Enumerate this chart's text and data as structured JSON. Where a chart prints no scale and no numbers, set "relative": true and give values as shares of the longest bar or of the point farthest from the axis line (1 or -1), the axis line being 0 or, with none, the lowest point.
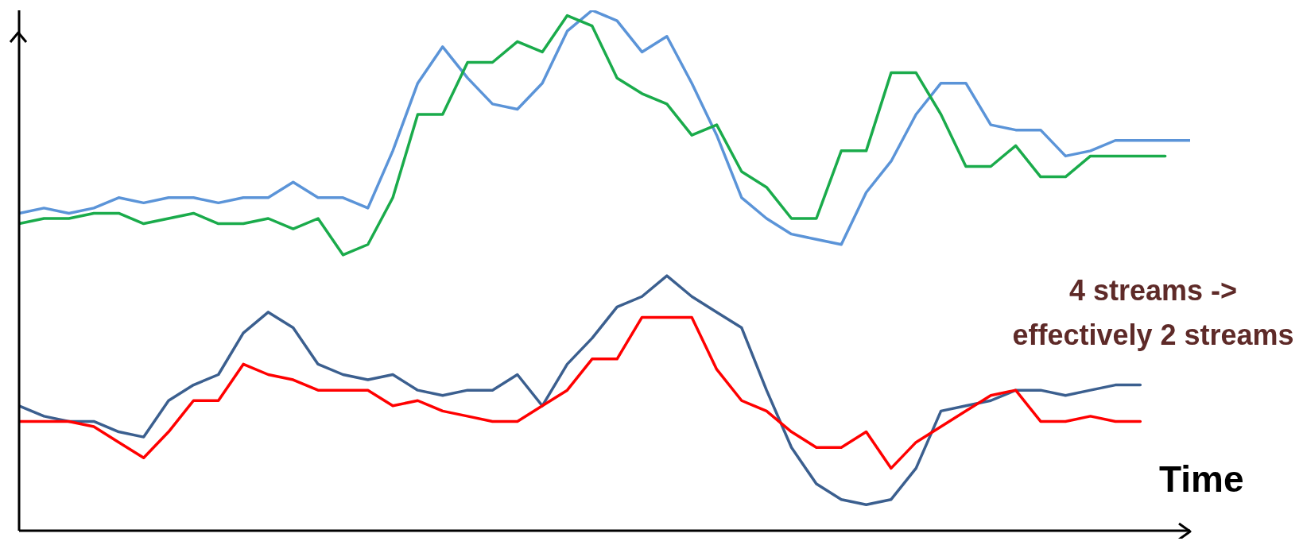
{
  "chart_data": {
    "type": "line",
    "relative": true,
    "xlabel": "Time",
    "annotations": [
      "4 streams -> effectively 2 streams"
    ],
    "grid": false,
    "marker": "none",
    "line_style": "solid",
    "categories": [
      null,
      null,
      null,
      null,
      null,
      null,
      null,
      null,
      null,
      null,
      null,
      null,
      null,
      null,
      null,
      null,
      null,
      null,
      null,
      null,
      null,
      null,
      null,
      null,
      null,
      null,
      null,
      null,
      null,
      null,
      null,
      null,
      null,
      null,
      null,
      null,
      null,
      null,
      null,
      null,
      null,
      null,
      null,
      null,
      null,
      null,
      null,
      null
    ],
    "series": [
      {
        "color": "#5b94d8",
        "values": [
          0.61,
          0.62,
          0.61,
          0.62,
          0.64,
          0.63,
          0.64,
          0.64,
          0.63,
          0.64,
          0.64,
          0.67,
          0.64,
          0.64,
          0.62,
          0.73,
          0.86,
          0.93,
          0.87,
          0.82,
          0.81,
          0.86,
          0.96,
          1,
          0.98,
          0.92,
          0.95,
          0.86,
          0.76,
          0.64,
          0.6,
          0.57,
          0.56,
          0.55,
          0.65,
          0.71,
          0.8,
          0.86,
          0.86,
          0.78,
          0.77,
          0.77,
          0.72,
          0.73,
          0.75,
          0.75,
          0.75,
          0.75
        ]
      },
      {
        "color": "#1aab4b",
        "values": [
          0.59,
          0.6,
          0.6,
          0.61,
          0.61,
          0.59,
          0.6,
          0.61,
          0.59,
          0.59,
          0.6,
          0.58,
          0.6,
          0.53,
          0.55,
          0.64,
          0.8,
          0.8,
          0.9,
          0.9,
          0.94,
          0.92,
          0.99,
          0.97,
          0.87,
          0.84,
          0.82,
          0.76,
          0.78,
          0.69,
          0.66,
          0.6,
          0.6,
          0.73,
          0.73,
          0.88,
          0.88,
          0.8,
          0.7,
          0.7,
          0.74,
          0.68,
          0.68,
          0.72,
          0.72,
          0.72,
          0.72,
          null
        ]
      },
      {
        "color": "#3b5f8f",
        "values": [
          0.24,
          0.22,
          0.21,
          0.21,
          0.19,
          0.18,
          0.25,
          0.28,
          0.3,
          0.38,
          0.42,
          0.39,
          0.32,
          0.3,
          0.29,
          0.3,
          0.27,
          0.26,
          0.27,
          0.27,
          0.3,
          0.24,
          0.32,
          0.37,
          0.43,
          0.45,
          0.49,
          0.45,
          0.42,
          0.39,
          0.27,
          0.16,
          0.09,
          0.06,
          0.05,
          0.06,
          0.12,
          0.23,
          0.24,
          0.25,
          0.27,
          0.27,
          0.26,
          0.27,
          0.28,
          0.28,
          null,
          null
        ]
      },
      {
        "color": "#ff0000",
        "values": [
          0.21,
          0.21,
          0.21,
          0.2,
          0.17,
          0.14,
          0.19,
          0.25,
          0.25,
          0.32,
          0.3,
          0.29,
          0.27,
          0.27,
          0.27,
          0.24,
          0.25,
          0.23,
          0.22,
          0.21,
          0.21,
          0.24,
          0.27,
          0.33,
          0.33,
          0.41,
          0.41,
          0.41,
          0.31,
          0.25,
          0.23,
          0.19,
          0.16,
          0.16,
          0.19,
          0.12,
          0.17,
          0.2,
          0.23,
          0.26,
          0.27,
          0.21,
          0.21,
          0.22,
          0.21,
          0.21,
          null,
          null
        ]
      }
    ]
  }
}
